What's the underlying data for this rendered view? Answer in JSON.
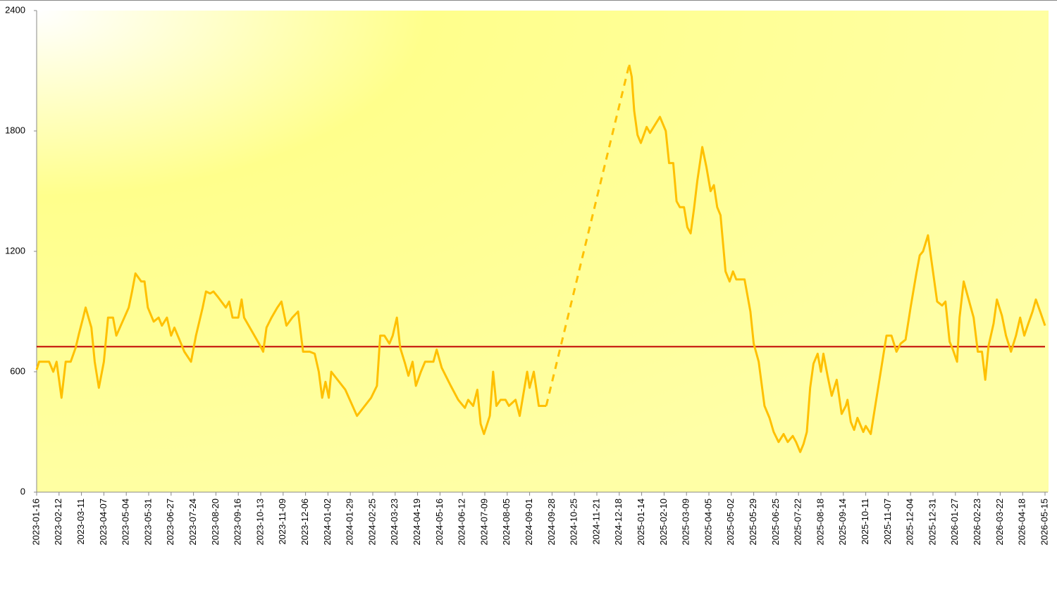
{
  "chart_data": {
    "type": "line",
    "color": "#ffc000",
    "gap_style": "dashed",
    "reference_line": 725,
    "reference_color": "#c00000",
    "ylim": [
      0,
      2400
    ],
    "yticks": [
      0,
      600,
      1200,
      1800,
      2400
    ],
    "xlim": [
      "2023-01-16",
      "2026-05-15"
    ],
    "xticks": [
      "2023-01-16",
      "2023-02-12",
      "2023-03-11",
      "2023-04-07",
      "2023-05-04",
      "2023-05-31",
      "2023-06-27",
      "2023-07-24",
      "2023-08-20",
      "2023-09-16",
      "2023-10-13",
      "2023-11-09",
      "2023-12-06",
      "2024-01-02",
      "2024-01-29",
      "2024-02-25",
      "2024-03-23",
      "2024-04-19",
      "2024-05-16",
      "2024-06-12",
      "2024-07-09",
      "2024-08-05",
      "2024-09-01",
      "2024-09-28",
      "2024-10-25",
      "2024-11-21",
      "2024-12-18",
      "2025-01-14",
      "2025-02-10",
      "2025-03-09",
      "2025-04-05",
      "2025-05-02",
      "2025-05-29",
      "2025-06-25",
      "2025-07-22",
      "2025-08-18",
      "2025-09-14",
      "2025-10-11",
      "2025-11-07",
      "2025-12-04",
      "2025-12-31",
      "2026-01-27",
      "2026-02-23",
      "2026-03-22",
      "2026-04-18",
      "2026-05-15"
    ],
    "x": [
      "2023-01-16",
      "2023-01-19",
      "2023-01-31",
      "2023-02-05",
      "2023-02-09",
      "2023-02-15",
      "2023-02-20",
      "2023-02-26",
      "2023-03-04",
      "2023-03-08",
      "2023-03-13",
      "2023-03-16",
      "2023-03-23",
      "2023-03-27",
      "2023-04-01",
      "2023-04-07",
      "2023-04-12",
      "2023-04-18",
      "2023-04-22",
      "2023-05-07",
      "2023-05-11",
      "2023-05-15",
      "2023-05-22",
      "2023-05-26",
      "2023-05-30",
      "2023-06-06",
      "2023-06-12",
      "2023-06-16",
      "2023-06-22",
      "2023-06-27",
      "2023-07-01",
      "2023-07-07",
      "2023-07-13",
      "2023-07-21",
      "2023-07-27",
      "2023-08-04",
      "2023-08-08",
      "2023-08-13",
      "2023-08-17",
      "2023-08-23",
      "2023-09-01",
      "2023-09-05",
      "2023-09-09",
      "2023-09-16",
      "2023-09-20",
      "2023-09-23",
      "2023-10-11",
      "2023-10-16",
      "2023-10-20",
      "2023-10-26",
      "2023-11-02",
      "2023-11-07",
      "2023-11-13",
      "2023-11-20",
      "2023-11-27",
      "2023-12-03",
      "2023-12-11",
      "2023-12-17",
      "2023-12-22",
      "2023-12-26",
      "2023-12-30",
      "2024-01-03",
      "2024-01-06",
      "2024-01-23",
      "2024-02-06",
      "2024-02-23",
      "2024-03-01",
      "2024-03-05",
      "2024-03-10",
      "2024-03-16",
      "2024-03-20",
      "2024-03-25",
      "2024-03-29",
      "2024-04-04",
      "2024-04-08",
      "2024-04-13",
      "2024-04-17",
      "2024-04-23",
      "2024-04-28",
      "2024-05-08",
      "2024-05-12",
      "2024-05-18",
      "2024-05-29",
      "2024-06-07",
      "2024-06-15",
      "2024-06-19",
      "2024-06-25",
      "2024-06-30",
      "2024-07-04",
      "2024-07-08",
      "2024-07-15",
      "2024-07-19",
      "2024-07-23",
      "2024-07-28",
      "2024-08-03",
      "2024-08-07",
      "2024-08-15",
      "2024-08-20",
      "2024-08-29",
      "2024-09-01",
      "2024-09-06",
      "2024-09-12",
      "2024-09-21",
      "2024-11-10",
      "2024-12-30",
      "2025-01-02",
      "2025-01-05",
      "2025-01-09",
      "2025-01-13",
      "2025-01-20",
      "2025-01-24",
      "2025-02-05",
      "2025-02-12",
      "2025-02-16",
      "2025-02-21",
      "2025-02-25",
      "2025-03-01",
      "2025-03-06",
      "2025-03-10",
      "2025-03-14",
      "2025-03-18",
      "2025-03-22",
      "2025-03-28",
      "2025-04-02",
      "2025-04-07",
      "2025-04-11",
      "2025-04-15",
      "2025-04-19",
      "2025-04-25",
      "2025-04-30",
      "2025-05-04",
      "2025-05-08",
      "2025-05-18",
      "2025-05-25",
      "2025-05-29",
      "2025-06-04",
      "2025-06-11",
      "2025-06-17",
      "2025-06-22",
      "2025-06-28",
      "2025-07-04",
      "2025-07-09",
      "2025-07-15",
      "2025-07-19",
      "2025-07-24",
      "2025-07-28",
      "2025-08-01",
      "2025-08-05",
      "2025-08-09",
      "2025-08-14",
      "2025-08-18",
      "2025-08-21",
      "2025-08-26",
      "2025-08-31",
      "2025-09-06",
      "2025-09-12",
      "2025-09-17",
      "2025-09-19",
      "2025-09-23",
      "2025-09-27",
      "2025-10-01",
      "2025-10-08",
      "2025-10-11",
      "2025-10-17",
      "2025-11-05",
      "2025-11-11",
      "2025-11-17",
      "2025-11-22",
      "2025-11-28",
      "2025-12-04",
      "2025-12-11",
      "2025-12-15",
      "2025-12-19",
      "2025-12-25",
      "2025-12-29",
      "2026-01-05",
      "2026-01-11",
      "2026-01-15",
      "2026-01-20",
      "2026-01-24",
      "2026-01-29",
      "2026-02-01",
      "2026-02-06",
      "2026-02-18",
      "2026-02-23",
      "2026-02-28",
      "2026-03-04",
      "2026-03-08",
      "2026-03-14",
      "2026-03-18",
      "2026-03-24",
      "2026-03-29",
      "2026-04-04",
      "2026-04-10",
      "2026-04-15",
      "2026-04-20",
      "2026-04-24",
      "2026-04-30",
      "2026-05-04",
      "2026-05-10",
      "2026-05-15"
    ],
    "values": [
      610,
      650,
      650,
      600,
      650,
      470,
      650,
      650,
      720,
      790,
      870,
      920,
      820,
      650,
      520,
      650,
      870,
      870,
      780,
      920,
      1000,
      1090,
      1050,
      1050,
      920,
      850,
      870,
      830,
      870,
      780,
      820,
      760,
      700,
      650,
      780,
      920,
      1000,
      990,
      1000,
      970,
      920,
      950,
      870,
      870,
      960,
      870,
      740,
      700,
      820,
      870,
      920,
      950,
      830,
      870,
      900,
      700,
      700,
      690,
      600,
      470,
      550,
      470,
      600,
      510,
      380,
      470,
      530,
      780,
      780,
      740,
      780,
      870,
      720,
      640,
      580,
      650,
      530,
      600,
      650,
      650,
      710,
      620,
      530,
      460,
      420,
      460,
      430,
      510,
      340,
      290,
      380,
      600,
      430,
      460,
      460,
      430,
      460,
      380,
      600,
      520,
      600,
      430,
      430,
      null,
      2130,
      2070,
      1900,
      1780,
      1740,
      1820,
      1790,
      1870,
      1800,
      1640,
      1640,
      1450,
      1420,
      1420,
      1320,
      1290,
      1410,
      1550,
      1720,
      1620,
      1500,
      1530,
      1420,
      1380,
      1100,
      1050,
      1100,
      1060,
      1060,
      900,
      740,
      650,
      430,
      370,
      300,
      250,
      290,
      250,
      280,
      250,
      200,
      240,
      300,
      520,
      640,
      690,
      600,
      690,
      580,
      480,
      560,
      390,
      430,
      460,
      350,
      310,
      370,
      300,
      330,
      290,
      780,
      780,
      700,
      740,
      760,
      920,
      1090,
      1180,
      1200,
      1280,
      1160,
      950,
      930,
      950,
      750,
      710,
      650,
      870,
      1050,
      870,
      700,
      700,
      560,
      730,
      840,
      960,
      880,
      780,
      700,
      780,
      870,
      780,
      830,
      900,
      960,
      890,
      830
    ]
  }
}
